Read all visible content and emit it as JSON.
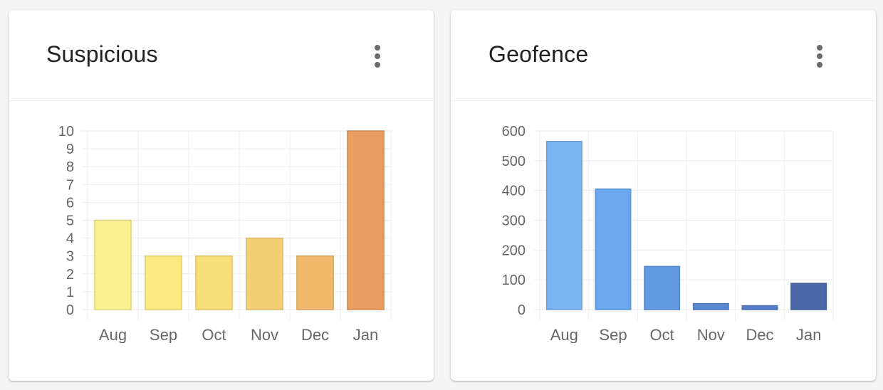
{
  "cards": [
    {
      "title": "Suspicious",
      "menu_icon": "more-vert-icon"
    },
    {
      "title": "Geofence",
      "menu_icon": "more-vert-icon"
    }
  ],
  "chart_data": [
    {
      "type": "bar",
      "title": "Suspicious",
      "categories": [
        "Aug",
        "Sep",
        "Oct",
        "Nov",
        "Dec",
        "Jan"
      ],
      "values": [
        5,
        3,
        3,
        4,
        3,
        10
      ],
      "ylim": [
        0,
        10
      ],
      "yticks": [
        0,
        1,
        2,
        3,
        4,
        5,
        6,
        7,
        8,
        9,
        10
      ],
      "bar_colors": [
        "#FCF08E",
        "#FBEA7D",
        "#F8DF78",
        "#F4CE73",
        "#F0B96B",
        "#EA9D5E"
      ],
      "xlabel": "",
      "ylabel": "",
      "grid": true
    },
    {
      "type": "bar",
      "title": "Geofence",
      "categories": [
        "Aug",
        "Sep",
        "Oct",
        "Nov",
        "Dec",
        "Jan"
      ],
      "values": [
        565,
        405,
        145,
        20,
        13,
        88
      ],
      "ylim": [
        0,
        600
      ],
      "yticks": [
        0,
        100,
        200,
        300,
        400,
        500,
        600
      ],
      "bar_colors": [
        "#7BB3F3",
        "#6AA7EC",
        "#6199E1",
        "#5A8AD6",
        "#577DCA",
        "#4A67AA"
      ],
      "xlabel": "",
      "ylabel": "",
      "grid": true
    }
  ]
}
